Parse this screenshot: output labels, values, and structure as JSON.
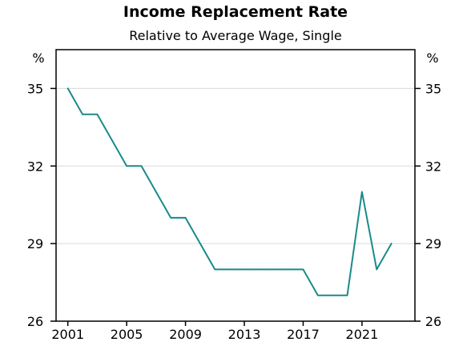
{
  "chart_data": {
    "type": "line",
    "title": "Income Replacement Rate",
    "subtitle": "Relative to Average Wage, Single",
    "y_unit_left": "%",
    "y_unit_right": "%",
    "ylim": [
      26,
      36.5
    ],
    "yticks": [
      26,
      29,
      32,
      35
    ],
    "ytick_labels": [
      "26",
      "29",
      "32",
      "35"
    ],
    "xlim": [
      2000.2,
      2024.6
    ],
    "xticks": [
      2001,
      2005,
      2009,
      2013,
      2017,
      2021
    ],
    "xtick_labels": [
      "2001",
      "2005",
      "2009",
      "2013",
      "2017",
      "2021"
    ],
    "grid": true,
    "series": [
      {
        "color": "#1a8a8a",
        "x": [
          2001,
          2002,
          2003,
          2004,
          2005,
          2006,
          2007,
          2008,
          2009,
          2010,
          2011,
          2012,
          2013,
          2014,
          2015,
          2016,
          2017,
          2018,
          2019,
          2020,
          2021,
          2022,
          2023
        ],
        "values": [
          35,
          34,
          34,
          33,
          32,
          32,
          31,
          30,
          30,
          29,
          28,
          28,
          28,
          28,
          28,
          28,
          28,
          27,
          27,
          27,
          31,
          28,
          29
        ]
      }
    ]
  }
}
